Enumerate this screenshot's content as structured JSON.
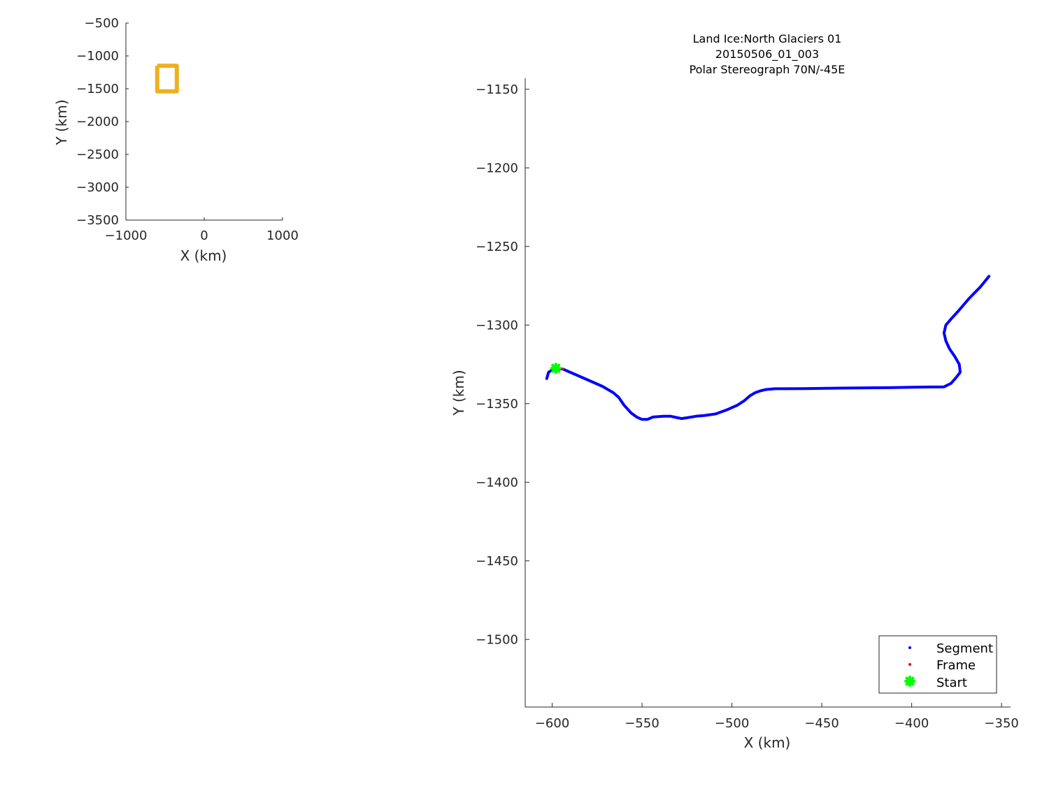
{
  "chart_data": [
    {
      "type": "line",
      "title": "",
      "xlabel": "X (km)",
      "ylabel": "Y (km)",
      "xlim": [
        -1000,
        1000
      ],
      "ylim": [
        -3500,
        -500
      ],
      "xticks": [
        -1000,
        0,
        1000
      ],
      "xtick_labels": [
        "−1000",
        "0",
        "1000"
      ],
      "yticks": [
        -500,
        -1000,
        -1500,
        -2000,
        -2500,
        -3000,
        -3500
      ],
      "ytick_labels": [
        "−500",
        "−1000",
        "−1500",
        "−2000",
        "−2500",
        "−3000",
        "−3500"
      ],
      "grid": false,
      "series": [
        {
          "color": "#EDB120",
          "x": [
            -600,
            -350,
            -350,
            -600,
            -600
          ],
          "y": [
            -1150,
            -1150,
            -1540,
            -1540,
            -1150
          ]
        }
      ]
    },
    {
      "type": "scatter",
      "title": [
        "Land Ice:North Glaciers 01",
        "20150506_01_003",
        "Polar Stereograph 70N/-45E"
      ],
      "xlabel": "X (km)",
      "ylabel": "Y (km)",
      "xlim": [
        -615,
        -345
      ],
      "ylim": [
        -1543,
        -1143
      ],
      "xticks": [
        -600,
        -550,
        -500,
        -450,
        -400,
        -350
      ],
      "xtick_labels": [
        "−600",
        "−550",
        "−500",
        "−450",
        "−400",
        "−350"
      ],
      "yticks": [
        -1150,
        -1200,
        -1250,
        -1300,
        -1350,
        -1400,
        -1450,
        -1500
      ],
      "ytick_labels": [
        "−1150",
        "−1200",
        "−1250",
        "−1300",
        "−1350",
        "−1400",
        "−1450",
        "−1500"
      ],
      "grid": false,
      "legend_position": "bottom-right",
      "series": [
        {
          "name": "Segment",
          "color": "#0000FF",
          "marker": "dot",
          "x": [
            -603,
            -602,
            -600,
            -598,
            -594,
            -588,
            -580,
            -572,
            -566,
            -563,
            -560,
            -556,
            -553,
            -550,
            -547,
            -544,
            -538,
            -534,
            -531,
            -528,
            -524,
            -520,
            -515,
            -509,
            -503,
            -497,
            -493,
            -490,
            -487,
            -484,
            -481,
            -476,
            -470,
            -460,
            -450,
            -440,
            -430,
            -420,
            -410,
            -400,
            -390,
            -382,
            -378,
            -375,
            -373,
            -373.5,
            -376,
            -379,
            -381,
            -382,
            -381,
            -378,
            -374,
            -368,
            -362,
            -357
          ],
          "y": [
            -1334,
            -1330,
            -1328.5,
            -1327.5,
            -1328,
            -1331,
            -1335,
            -1339,
            -1343,
            -1346,
            -1351,
            -1356,
            -1358.5,
            -1360,
            -1360,
            -1358.5,
            -1358,
            -1358,
            -1358.8,
            -1359.5,
            -1358.8,
            -1358,
            -1357.5,
            -1356.5,
            -1354,
            -1351,
            -1348,
            -1345,
            -1343,
            -1341.8,
            -1341,
            -1340.5,
            -1340.5,
            -1340.4,
            -1340.3,
            -1340.1,
            -1340,
            -1339.9,
            -1339.8,
            -1339.6,
            -1339.4,
            -1339.3,
            -1337,
            -1333,
            -1330,
            -1325,
            -1320,
            -1315,
            -1310,
            -1305,
            -1300,
            -1296,
            -1291,
            -1283,
            -1276,
            -1269
          ]
        },
        {
          "name": "Frame",
          "color": "#FF0000",
          "marker": "dot",
          "x": [
            -596,
            -594
          ],
          "y": [
            -1327.6,
            -1328
          ]
        },
        {
          "name": "Start",
          "color": "#00FF00",
          "marker": "star",
          "x": [
            -598
          ],
          "y": [
            -1327.5
          ]
        }
      ]
    }
  ]
}
